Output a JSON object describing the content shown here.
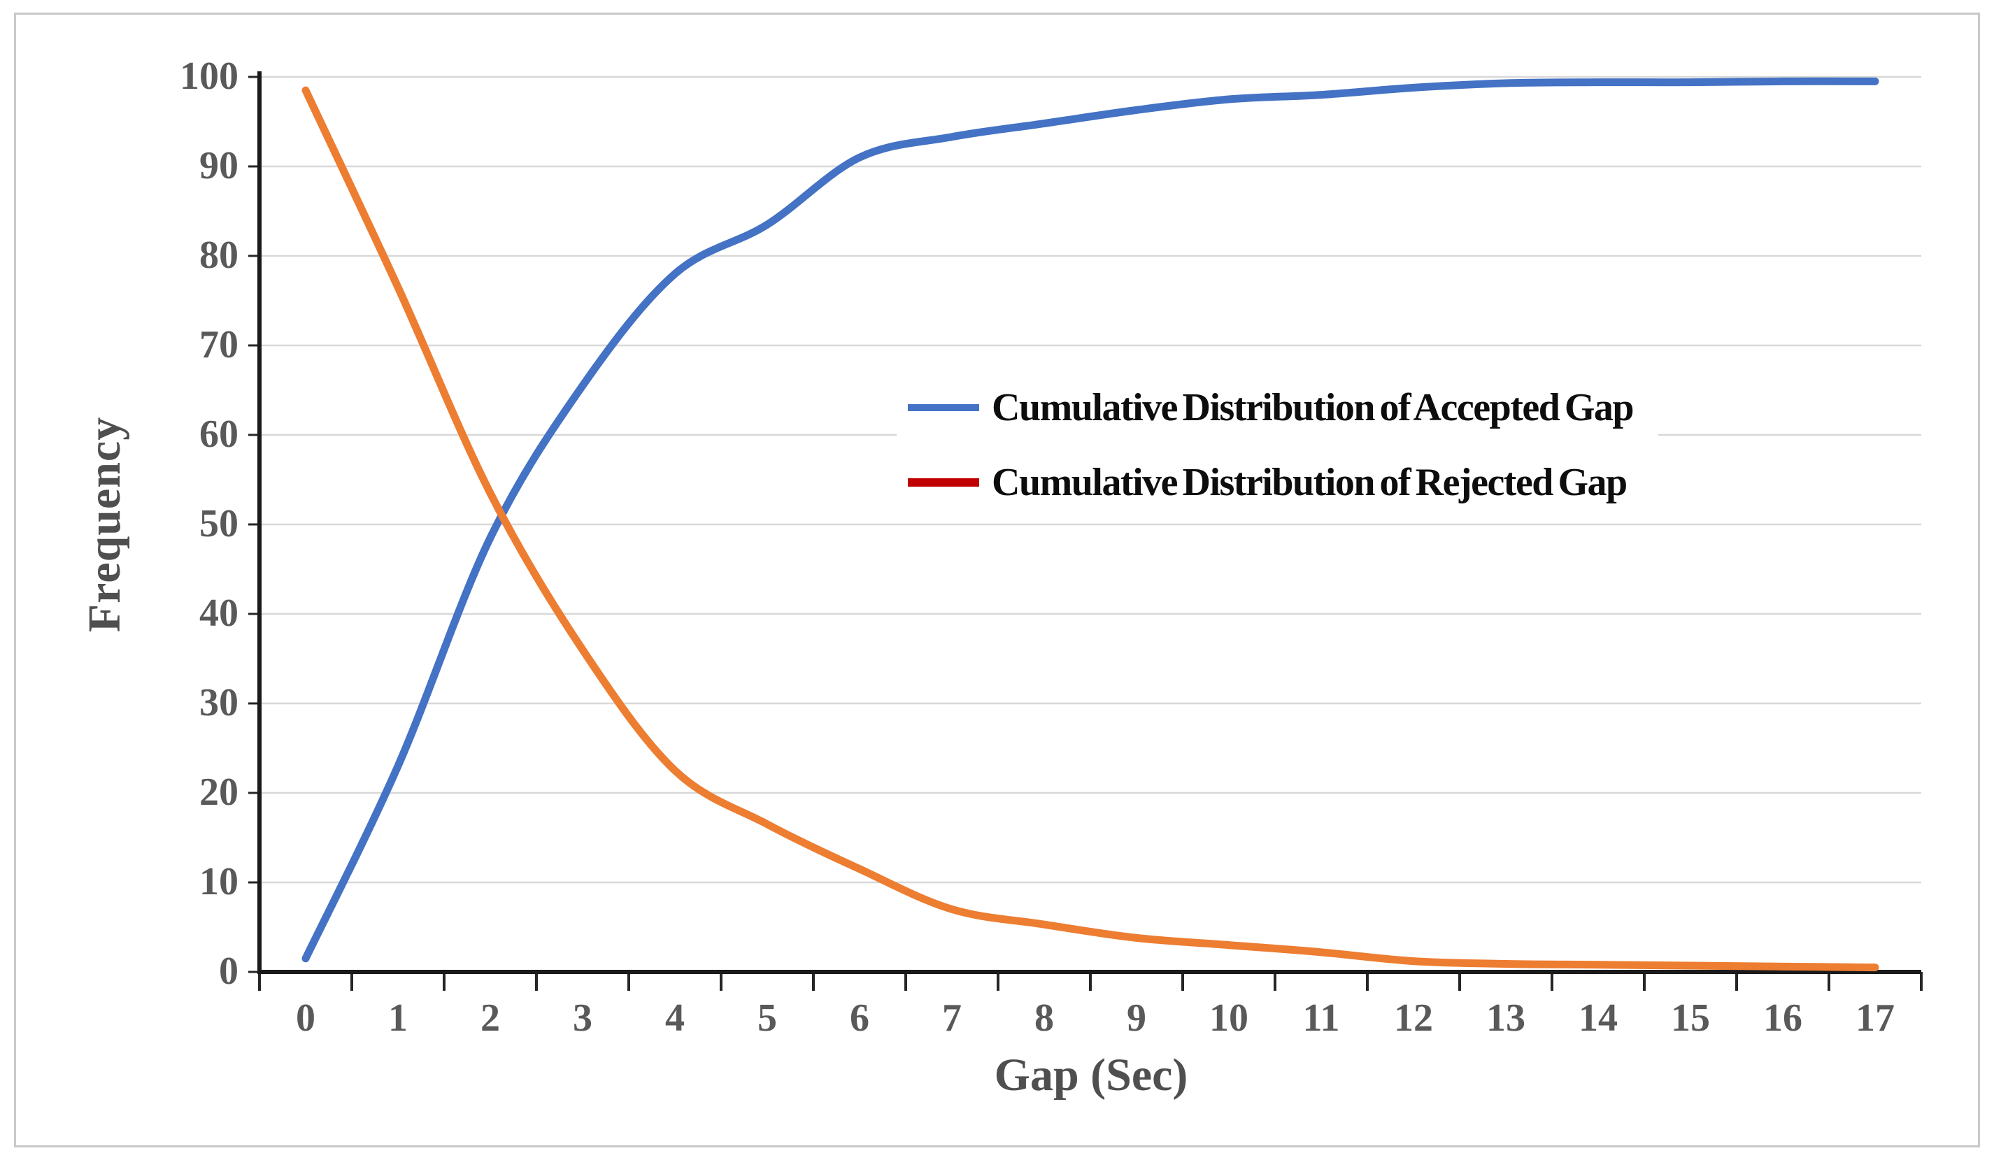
{
  "chart_data": {
    "type": "line",
    "line_style": "smoothed",
    "title": "",
    "xlabel": "Gap (Sec)",
    "ylabel": "Frequency",
    "x": [
      0,
      1,
      2,
      3,
      4,
      5,
      6,
      7,
      8,
      9,
      10,
      11,
      12,
      13,
      14,
      15,
      16,
      17
    ],
    "xticks": [
      "0",
      "1",
      "2",
      "3",
      "4",
      "5",
      "6",
      "7",
      "8",
      "9",
      "10",
      "11",
      "12",
      "13",
      "14",
      "15",
      "16",
      "17"
    ],
    "yticks": [
      "0",
      "10",
      "20",
      "30",
      "40",
      "50",
      "60",
      "70",
      "80",
      "90",
      "100"
    ],
    "ylim": [
      0,
      100
    ],
    "grid": "horizontal",
    "legend_position": "inside-center-right",
    "series": [
      {
        "name": "Cumulative Distribution of Accepted Gap",
        "color": "#4472C4",
        "legend_swatch_color": "#4472C4",
        "values": [
          1.5,
          23,
          48.5,
          65.5,
          78,
          83.5,
          91,
          93.3,
          94.8,
          96.3,
          97.5,
          98,
          98.8,
          99.3,
          99.4,
          99.4,
          99.5,
          99.5
        ]
      },
      {
        "name": "Cumulative Distribution of Rejected Gap",
        "color": "#ED7D31",
        "legend_swatch_color": "#C00000",
        "values": [
          98.5,
          76.5,
          53.5,
          36,
          22.5,
          16.5,
          11.5,
          7,
          5.3,
          3.8,
          3,
          2.2,
          1.2,
          0.9,
          0.8,
          0.7,
          0.6,
          0.5
        ]
      }
    ]
  },
  "colors": {
    "gridline": "#d8d8d8",
    "axis_line": "#1a1a1a",
    "tick_mark": "#262626",
    "tick_label": "#595959",
    "axis_title": "#4f4f4f",
    "figure_border": "#c9c9c9",
    "background": "#ffffff"
  }
}
